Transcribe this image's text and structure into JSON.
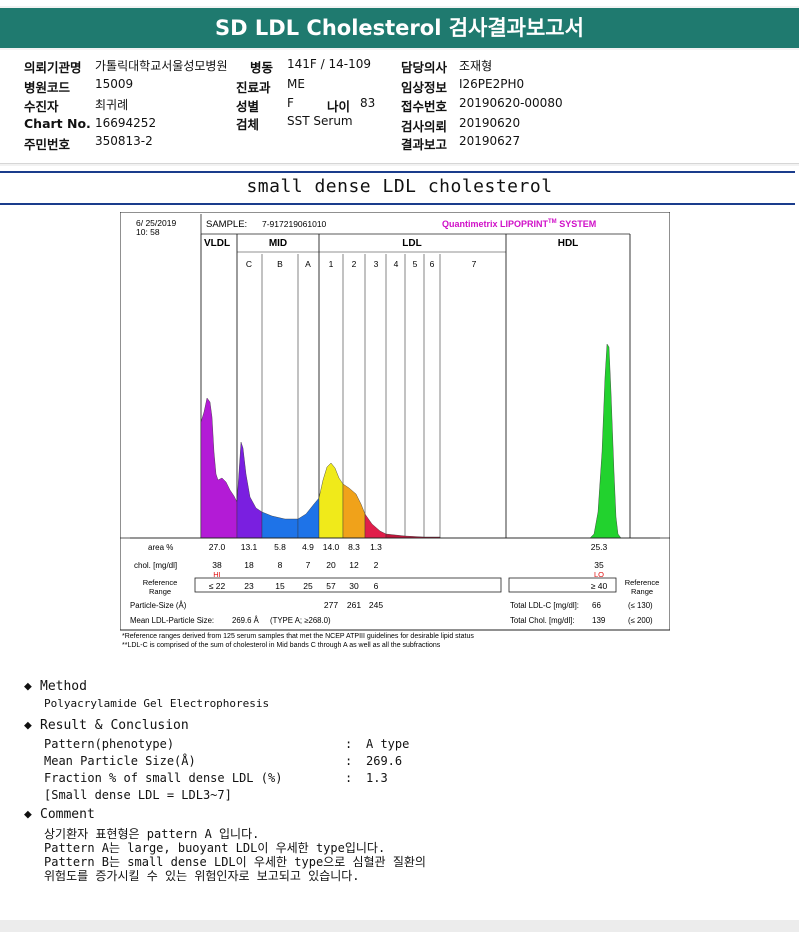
{
  "header": {
    "title": "SD LDL Cholesterol 검사결과보고서"
  },
  "info": {
    "institution": {
      "label": "의뢰기관명",
      "value": "가톨릭대학교서울성모병원"
    },
    "ward": {
      "label": "병동",
      "value": "141F / 14-109"
    },
    "doctor": {
      "label": "담당의사",
      "value": "조재형"
    },
    "hospital_code": {
      "label": "병원코드",
      "value": "15009"
    },
    "department": {
      "label": "진료과",
      "value": "ME"
    },
    "clinical_info": {
      "label": "임상정보",
      "value": "I26PE2PH0"
    },
    "patient": {
      "label": "수진자",
      "value": "최귀례"
    },
    "sex": {
      "label": "성별",
      "value": "F"
    },
    "age": {
      "label": "나이",
      "value": "83"
    },
    "receipt_no": {
      "label": "접수번호",
      "value": "20190620-00080"
    },
    "chart_no": {
      "label": "Chart No.",
      "value": "16694252"
    },
    "specimen": {
      "label": "검체",
      "value": "SST Serum"
    },
    "request_date": {
      "label": "검사의뢰",
      "value": "20190620"
    },
    "resident_no": {
      "label": "주민번호",
      "value": "350813-2"
    },
    "report_date": {
      "label": "결과보고",
      "value": "20190627"
    }
  },
  "report": {
    "heading": "small dense LDL cholesterol",
    "method": {
      "title": "Method",
      "text": "Polyacrylamide Gel Electrophoresis"
    },
    "result": {
      "title": "Result & Conclusion",
      "rows": [
        {
          "label": "Pattern(phenotype)",
          "sep": ":",
          "value": "A type"
        },
        {
          "label": "Mean Particle Size(Å)",
          "sep": ":",
          "value": "269.6"
        },
        {
          "label": "Fraction % of small dense LDL (%)",
          "sep": ":",
          "value": "1.3"
        }
      ],
      "note": "[Small dense LDL = LDL3~7]"
    },
    "comment": {
      "title": "Comment",
      "lines": [
        "상기환자 표현형은 pattern A 입니다.",
        "Pattern A는 large, buoyant LDL이 우세한 type입니다.",
        "Pattern B는 small dense LDL이 우세한 type으로 심혈관 질환의",
        "위험도를 증가시킬 수 있는 위험인자로 보고되고 있습니다."
      ]
    }
  },
  "chart_data": {
    "type": "area",
    "date": "6/ 25/2019",
    "time": "10: 58",
    "sample_label": "SAMPLE:",
    "sample_id": "7-917219061010",
    "brand": "Quantimetrix LIPOPRINT",
    "brand_tm": "TM",
    "brand_suffix": " SYSTEM",
    "groups": [
      "VLDL",
      "MID",
      "LDL",
      "HDL"
    ],
    "bands": [
      "C",
      "B",
      "A",
      "1",
      "2",
      "3",
      "4",
      "5",
      "6",
      "7"
    ],
    "rows": {
      "area_label": "area %",
      "area": [
        "27.0",
        "13.1",
        "5.8",
        "4.9",
        "14.0",
        "8.3",
        "1.3",
        "25.3"
      ],
      "chol_label": "chol. [mg/dl]",
      "chol": [
        "38",
        "18",
        "8",
        "7",
        "20",
        "12",
        "2",
        "35"
      ],
      "chol_flags": {
        "vldl": "HI",
        "hdl": "LO"
      },
      "ref_label": "Reference Range",
      "ref": [
        "≤ 22",
        "23",
        "15",
        "25",
        "57",
        "30",
        "6",
        "≥ 40"
      ],
      "particle_label": "Particle-Size (Å)",
      "particle": [
        "277",
        "261",
        "245"
      ],
      "mean_label": "Mean LDL-Particle Size:",
      "mean_value": "269.6 Å",
      "mean_type": "(TYPE A; ≥268.0)",
      "total_ldl_label": "Total LDL-C [mg/dl]:",
      "total_ldl_value": "66",
      "total_ldl_ref": "(≤ 130)",
      "total_chol_label": "Total Chol. [mg/dl]:",
      "total_chol_value": "139",
      "total_chol_ref": "(≤ 200)"
    },
    "footnotes": [
      "*Reference ranges derived from 125 serum samples that met the NCEP ATPIII guidelines for desirable lipid status",
      "**LDL-C is comprised of the sum of cholesterol in Mid bands C through A as well as all the subfractions"
    ],
    "colors": {
      "vldl": "#b31bd6",
      "midC": "#7a1fe0",
      "midB": "#1e73e8",
      "midA": "#1e73e8",
      "ldl1": "#f0ea1a",
      "ldl2": "#f0a21a",
      "ldl3": "#e01e4a",
      "hdl": "#22d22e",
      "brand": "#d010c8",
      "flag": "#e01010"
    }
  }
}
